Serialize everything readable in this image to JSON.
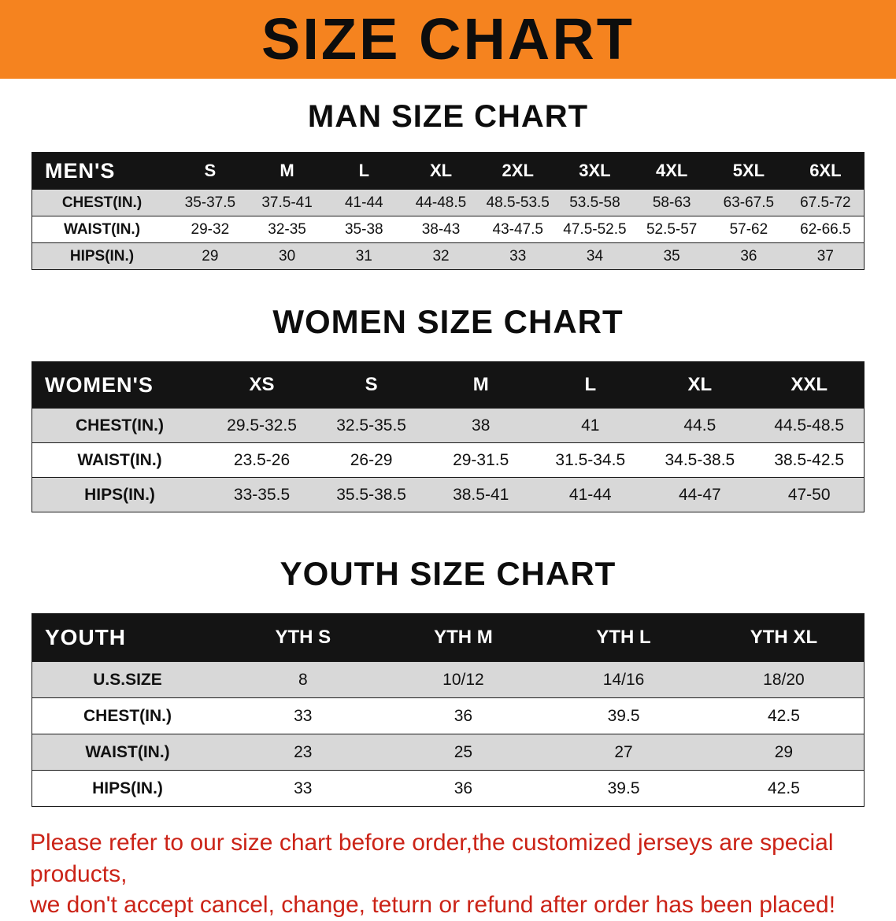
{
  "banner": {
    "title": "SIZE CHART",
    "background_color": "#f5831f"
  },
  "sections": [
    {
      "heading": "MAN SIZE CHART",
      "table": {
        "header": [
          "MEN'S",
          "S",
          "M",
          "L",
          "XL",
          "2XL",
          "3XL",
          "4XL",
          "5XL",
          "6XL"
        ],
        "rows": [
          [
            "CHEST(IN.)",
            "35-37.5",
            "37.5-41",
            "41-44",
            "44-48.5",
            "48.5-53.5",
            "53.5-58",
            "58-63",
            "63-67.5",
            "67.5-72"
          ],
          [
            "WAIST(IN.)",
            "29-32",
            "32-35",
            "35-38",
            "38-43",
            "43-47.5",
            "47.5-52.5",
            "52.5-57",
            "57-62",
            "62-66.5"
          ],
          [
            "HIPS(IN.)",
            "29",
            "30",
            "31",
            "32",
            "33",
            "34",
            "35",
            "36",
            "37"
          ]
        ]
      }
    },
    {
      "heading": "WOMEN SIZE CHART",
      "table": {
        "header": [
          "WOMEN'S",
          "XS",
          "S",
          "M",
          "L",
          "XL",
          "XXL"
        ],
        "rows": [
          [
            "CHEST(IN.)",
            "29.5-32.5",
            "32.5-35.5",
            "38",
            "41",
            "44.5",
            "44.5-48.5"
          ],
          [
            "WAIST(IN.)",
            "23.5-26",
            "26-29",
            "29-31.5",
            "31.5-34.5",
            "34.5-38.5",
            "38.5-42.5"
          ],
          [
            "HIPS(IN.)",
            "33-35.5",
            "35.5-38.5",
            "38.5-41",
            "41-44",
            "44-47",
            "47-50"
          ]
        ]
      }
    },
    {
      "heading": "YOUTH SIZE CHART",
      "table": {
        "header": [
          "YOUTH",
          "YTH S",
          "YTH M",
          "YTH L",
          "YTH XL"
        ],
        "rows": [
          [
            "U.S.SIZE",
            "8",
            "10/12",
            "14/16",
            "18/20"
          ],
          [
            "CHEST(IN.)",
            "33",
            "36",
            "39.5",
            "42.5"
          ],
          [
            "WAIST(IN.)",
            "23",
            "25",
            "27",
            "29"
          ],
          [
            "HIPS(IN.)",
            "33",
            "36",
            "39.5",
            "42.5"
          ]
        ]
      }
    }
  ],
  "disclaimer": {
    "line1": "Please refer to our size chart before order,the customized jerseys are special products,",
    "line2": "we don't accept cancel, change, teturn or refund after order has been placed!",
    "text_color": "#cb2317"
  }
}
